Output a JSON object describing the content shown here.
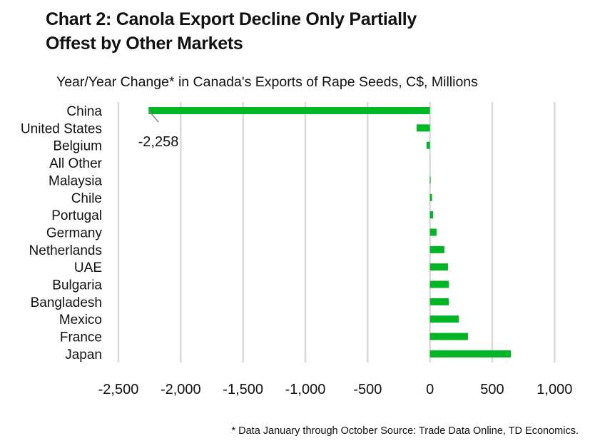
{
  "title_line1": "Chart 2: Canola Export Decline Only Partially",
  "title_line2": "Offest by Other Markets",
  "note": "* Data January through October Source: Trade Data Online, TD Economics.",
  "chart_data": {
    "type": "bar",
    "orientation": "horizontal",
    "title": "Chart 2: Canola Export Decline Only Partially Offest by Other Markets",
    "subtitle": "Year/Year Change* in Canada's Exports of Rape Seeds, C$, Millions",
    "categories": [
      "China",
      "United States",
      "Belgium",
      "All Other",
      "Malaysia",
      "Chile",
      "Portugal",
      "Germany",
      "Netherlands",
      "UAE",
      "Bulgaria",
      "Bangladesh",
      "Mexico",
      "France",
      "Japan"
    ],
    "values": [
      -2258,
      -107,
      -27,
      0,
      5,
      17,
      25,
      53,
      116,
      145,
      151,
      151,
      231,
      305,
      649
    ],
    "xlim": [
      -2500,
      1000
    ],
    "xticks": [
      -2500,
      -2000,
      -1500,
      -1000,
      -500,
      0,
      500,
      1000
    ],
    "xtick_labels": [
      "-2,500",
      "-2,000",
      "-1,500",
      "-1,000",
      "-500",
      "0",
      "500",
      "1,000"
    ],
    "annotation": {
      "category": "China",
      "text": "-2,258"
    },
    "grid": "vertical",
    "bar_color": "#00b624",
    "grid_color": "#d9d9d9"
  }
}
